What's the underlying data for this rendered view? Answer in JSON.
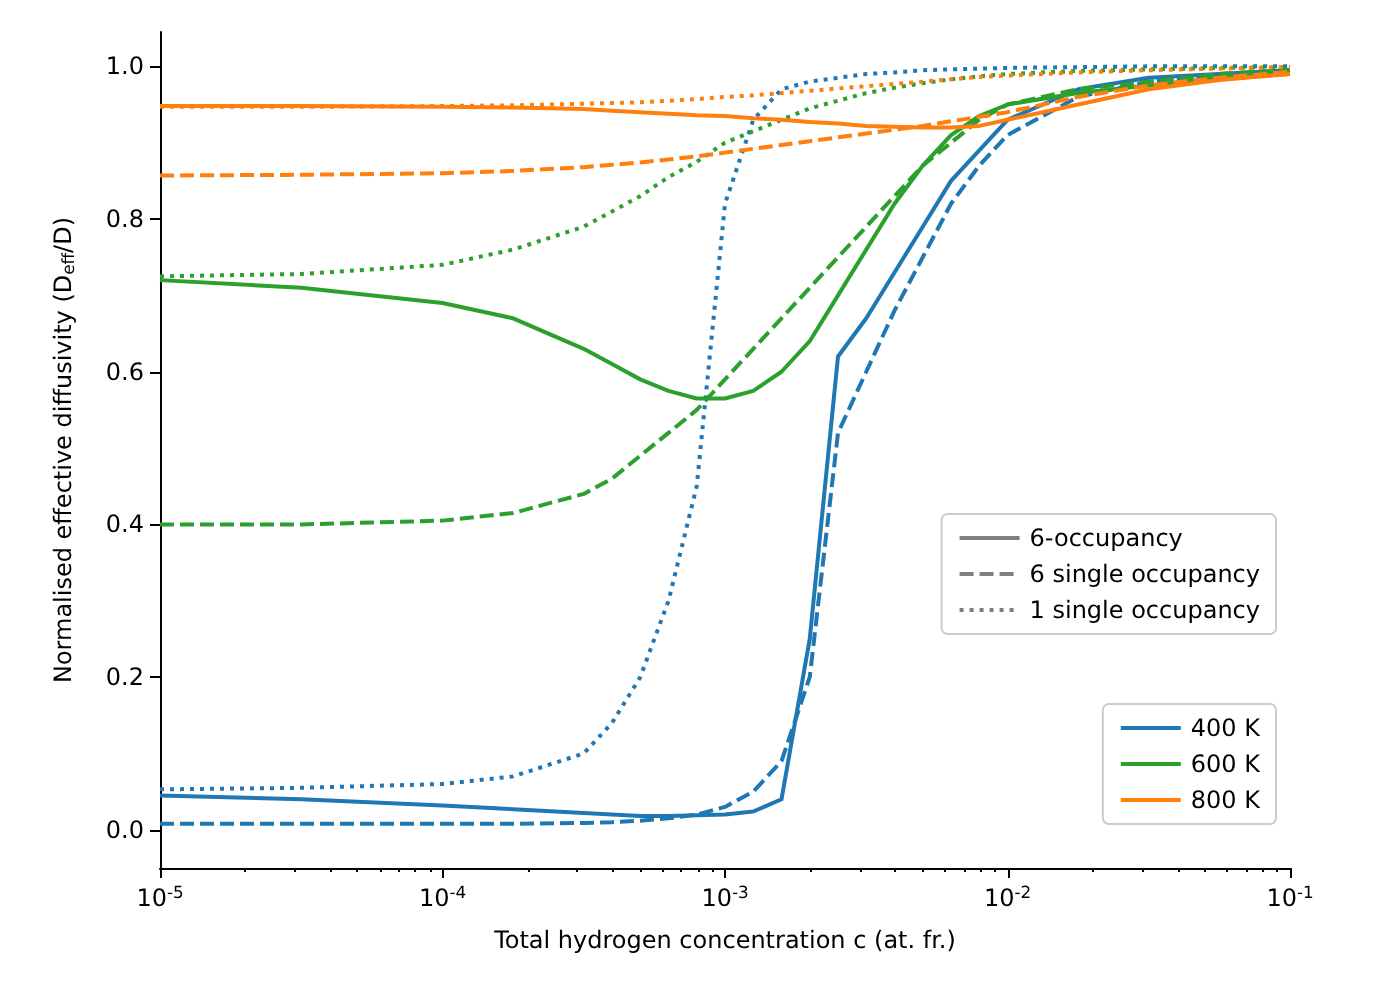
{
  "chart_data": {
    "type": "line",
    "xlabel": "Total hydrogen concentration c (at. fr.)",
    "ylabel": "Normalised effective diffusivity (D$_{eff}$/D)",
    "log": "x",
    "grid": false,
    "legend": "bottom right",
    "marker": "none",
    "x": [
      1e-05,
      3.162e-05,
      0.0001,
      0.0001778,
      0.0003162,
      0.0003981,
      0.0005012,
      0.000631,
      0.0007943,
      0.001,
      0.001259,
      0.001585,
      0.001995,
      0.002512,
      0.003162,
      0.003981,
      0.005012,
      0.00631,
      0.007943,
      0.01,
      0.01778,
      0.03162,
      0.05623,
      0.1
    ],
    "xlim": [
      1e-05,
      0.1
    ],
    "xticks": [
      {
        "value": 1e-05,
        "label": "10$^{-5}$"
      },
      {
        "value": 0.0001,
        "label": "10$^{-4}$"
      },
      {
        "value": 0.001,
        "label": "10$^{-3}$"
      },
      {
        "value": 0.01,
        "label": "10$^{-2}$"
      },
      {
        "value": 0.1,
        "label": "10$^{-1}$"
      }
    ],
    "ylim": [
      -0.05,
      1.045
    ],
    "yticks": [
      {
        "value": 0,
        "label": "0.0"
      },
      0.2,
      0.4,
      0.6,
      0.8,
      {
        "value": 1,
        "label": "1.0"
      }
    ],
    "series": [
      {
        "name": "6-occupancy",
        "color": "#7f7f7f",
        "line_style": "solid",
        "values": [
          null,
          null,
          null,
          null,
          null,
          null,
          null,
          null,
          null,
          null,
          null,
          null,
          null,
          null,
          null,
          null,
          null,
          null,
          null,
          null,
          null,
          null,
          null,
          null
        ]
      },
      {
        "name": "6 single occupancy",
        "color": "#7f7f7f",
        "line_style": "dashed",
        "values": [
          null,
          null,
          null,
          null,
          null,
          null,
          null,
          null,
          null,
          null,
          null,
          null,
          null,
          null,
          null,
          null,
          null,
          null,
          null,
          null,
          null,
          null,
          null,
          null
        ]
      },
      {
        "name": "1 single occupancy",
        "color": "#7f7f7f",
        "line_style": "dotted",
        "values": [
          null,
          null,
          null,
          null,
          null,
          null,
          null,
          null,
          null,
          null,
          null,
          null,
          null,
          null,
          null,
          null,
          null,
          null,
          null,
          null,
          null,
          null,
          null,
          null
        ]
      },
      {
        "name": "400 K",
        "color": "#1f77b4",
        "line_style": "solid",
        "values": [
          0.045,
          0.04,
          0.032,
          0.027,
          0.022,
          0.02,
          0.018,
          0.018,
          0.019,
          0.02,
          0.024,
          0.04,
          0.25,
          0.62,
          0.67,
          0.73,
          0.79,
          0.85,
          0.89,
          0.93,
          0.97,
          0.985,
          0.99,
          0.995
        ]
      },
      {
        "color": "#1f77b4",
        "line_style": "dashed",
        "values": [
          0.008,
          0.008,
          0.008,
          0.008,
          0.009,
          0.01,
          0.012,
          0.015,
          0.02,
          0.03,
          0.05,
          0.09,
          0.2,
          0.52,
          0.6,
          0.68,
          0.75,
          0.82,
          0.87,
          0.91,
          0.96,
          0.98,
          0.99,
          0.995
        ]
      },
      {
        "color": "#1f77b4",
        "line_style": "dotted",
        "values": [
          0.053,
          0.055,
          0.06,
          0.07,
          0.1,
          0.14,
          0.2,
          0.3,
          0.45,
          0.82,
          0.93,
          0.97,
          0.98,
          0.985,
          0.99,
          0.992,
          0.995,
          0.996,
          0.997,
          0.998,
          0.999,
          1.0,
          1.0,
          1.0
        ]
      },
      {
        "name": "600 K",
        "color": "#2ca02c",
        "line_style": "solid",
        "values": [
          0.72,
          0.71,
          0.69,
          0.67,
          0.63,
          0.61,
          0.59,
          0.575,
          0.565,
          0.565,
          0.575,
          0.6,
          0.64,
          0.7,
          0.76,
          0.82,
          0.87,
          0.91,
          0.935,
          0.95,
          0.965,
          0.975,
          0.985,
          0.99
        ]
      },
      {
        "color": "#2ca02c",
        "line_style": "dashed",
        "values": [
          0.4,
          0.4,
          0.405,
          0.415,
          0.44,
          0.46,
          0.49,
          0.52,
          0.55,
          0.59,
          0.63,
          0.67,
          0.71,
          0.75,
          0.79,
          0.83,
          0.87,
          0.9,
          0.93,
          0.95,
          0.97,
          0.98,
          0.99,
          0.995
        ]
      },
      {
        "color": "#2ca02c",
        "line_style": "dotted",
        "values": [
          0.725,
          0.728,
          0.74,
          0.76,
          0.79,
          0.81,
          0.83,
          0.855,
          0.875,
          0.9,
          0.915,
          0.93,
          0.945,
          0.955,
          0.965,
          0.972,
          0.978,
          0.983,
          0.987,
          0.99,
          0.994,
          0.996,
          0.998,
          0.999
        ]
      },
      {
        "name": "800 K",
        "color": "#ff7f0e",
        "line_style": "solid",
        "values": [
          0.948,
          0.948,
          0.947,
          0.946,
          0.944,
          0.942,
          0.94,
          0.938,
          0.936,
          0.935,
          0.932,
          0.93,
          0.927,
          0.925,
          0.922,
          0.921,
          0.92,
          0.92,
          0.922,
          0.93,
          0.95,
          0.97,
          0.982,
          0.99
        ]
      },
      {
        "color": "#ff7f0e",
        "line_style": "dashed",
        "values": [
          0.857,
          0.858,
          0.86,
          0.863,
          0.868,
          0.871,
          0.874,
          0.878,
          0.882,
          0.887,
          0.892,
          0.897,
          0.902,
          0.907,
          0.912,
          0.917,
          0.922,
          0.928,
          0.934,
          0.94,
          0.96,
          0.975,
          0.985,
          0.993
        ]
      },
      {
        "color": "#ff7f0e",
        "line_style": "dotted",
        "values": [
          0.947,
          0.947,
          0.948,
          0.949,
          0.951,
          0.952,
          0.953,
          0.955,
          0.957,
          0.96,
          0.962,
          0.965,
          0.968,
          0.971,
          0.974,
          0.977,
          0.98,
          0.983,
          0.986,
          0.988,
          0.992,
          0.995,
          0.997,
          0.999
        ]
      }
    ]
  }
}
